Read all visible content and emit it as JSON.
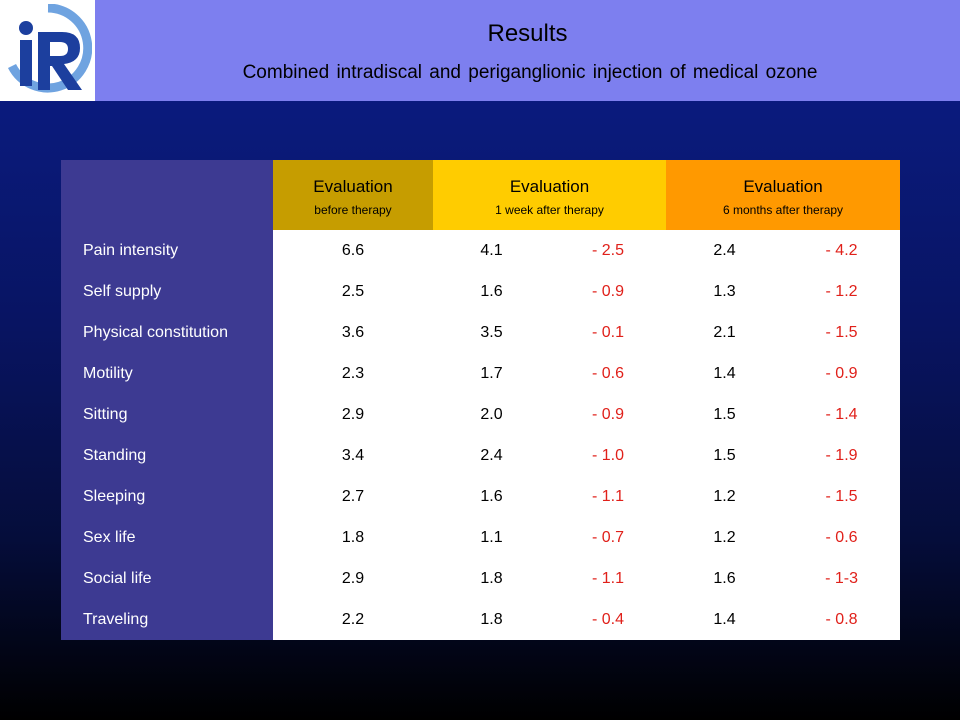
{
  "header": {
    "title": "Results",
    "subtitle": "Combined intradiscal and periganglionic injection of medical ozone",
    "logo_icon": "ir-logo"
  },
  "colors": {
    "header_band": "#7d7fef",
    "row_label_bg": "#3d3a92",
    "eval_before": "#c69d00",
    "eval_1week": "#ffcc00",
    "eval_6months": "#ff9900",
    "delta_text": "#e0201a"
  },
  "table": {
    "headers": [
      {
        "main": "Evaluation",
        "sub": "before therapy"
      },
      {
        "main": "Evaluation",
        "sub": "1 week after therapy"
      },
      {
        "main": "Evaluation",
        "sub": "6 months after therapy"
      }
    ],
    "rows": [
      {
        "label": "Pain intensity",
        "before": "6.6",
        "week": "4.1",
        "week_delta": "- 2.5",
        "months": "2.4",
        "months_delta": "- 4.2"
      },
      {
        "label": "Self supply",
        "before": "2.5",
        "week": "1.6",
        "week_delta": "- 0.9",
        "months": "1.3",
        "months_delta": "- 1.2"
      },
      {
        "label": "Physical constitution",
        "before": "3.6",
        "week": "3.5",
        "week_delta": "- 0.1",
        "months": "2.1",
        "months_delta": "- 1.5"
      },
      {
        "label": "Motility",
        "before": "2.3",
        "week": "1.7",
        "week_delta": "- 0.6",
        "months": "1.4",
        "months_delta": "- 0.9"
      },
      {
        "label": "Sitting",
        "before": "2.9",
        "week": "2.0",
        "week_delta": "- 0.9",
        "months": "1.5",
        "months_delta": "- 1.4"
      },
      {
        "label": "Standing",
        "before": "3.4",
        "week": "2.4",
        "week_delta": "- 1.0",
        "months": "1.5",
        "months_delta": "- 1.9"
      },
      {
        "label": "Sleeping",
        "before": "2.7",
        "week": "1.6",
        "week_delta": "- 1.1",
        "months": "1.2",
        "months_delta": "- 1.5"
      },
      {
        "label": "Sex life",
        "before": "1.8",
        "week": "1.1",
        "week_delta": "- 0.7",
        "months": "1.2",
        "months_delta": "- 0.6"
      },
      {
        "label": "Social life",
        "before": "2.9",
        "week": "1.8",
        "week_delta": "- 1.1",
        "months": "1.6",
        "months_delta": "- 1-3"
      },
      {
        "label": "Traveling",
        "before": "2.2",
        "week": "1.8",
        "week_delta": "- 0.4",
        "months": "1.4",
        "months_delta": "- 0.8"
      }
    ]
  }
}
